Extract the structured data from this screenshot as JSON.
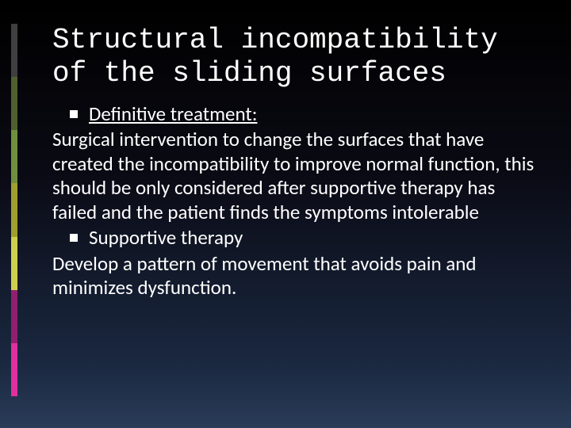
{
  "stripes": {
    "colors": [
      "#3f3f3f",
      "#4f5f2f",
      "#6f8f3f",
      "#9f9f2f",
      "#cfcf4f",
      "#911f6f",
      "#e02f9f"
    ]
  },
  "title": {
    "text": "Structural incompatibility of the sliding surfaces",
    "fontsize": 36,
    "color": "#ffffff"
  },
  "body": {
    "fontsize": 25,
    "color": "#ffffff",
    "items": [
      {
        "type": "bullet",
        "text": "Definitive treatment:",
        "underline": true
      },
      {
        "type": "para",
        "text": "Surgical intervention to change the surfaces that have created the incompatibility to improve normal function, this should be only considered after supportive therapy has failed and the patient finds the symptoms intolerable"
      },
      {
        "type": "bullet",
        "text": "Supportive therapy",
        "underline": false
      },
      {
        "type": "para",
        "text": "Develop a pattern of movement that avoids pain and minimizes dysfunction."
      }
    ]
  }
}
